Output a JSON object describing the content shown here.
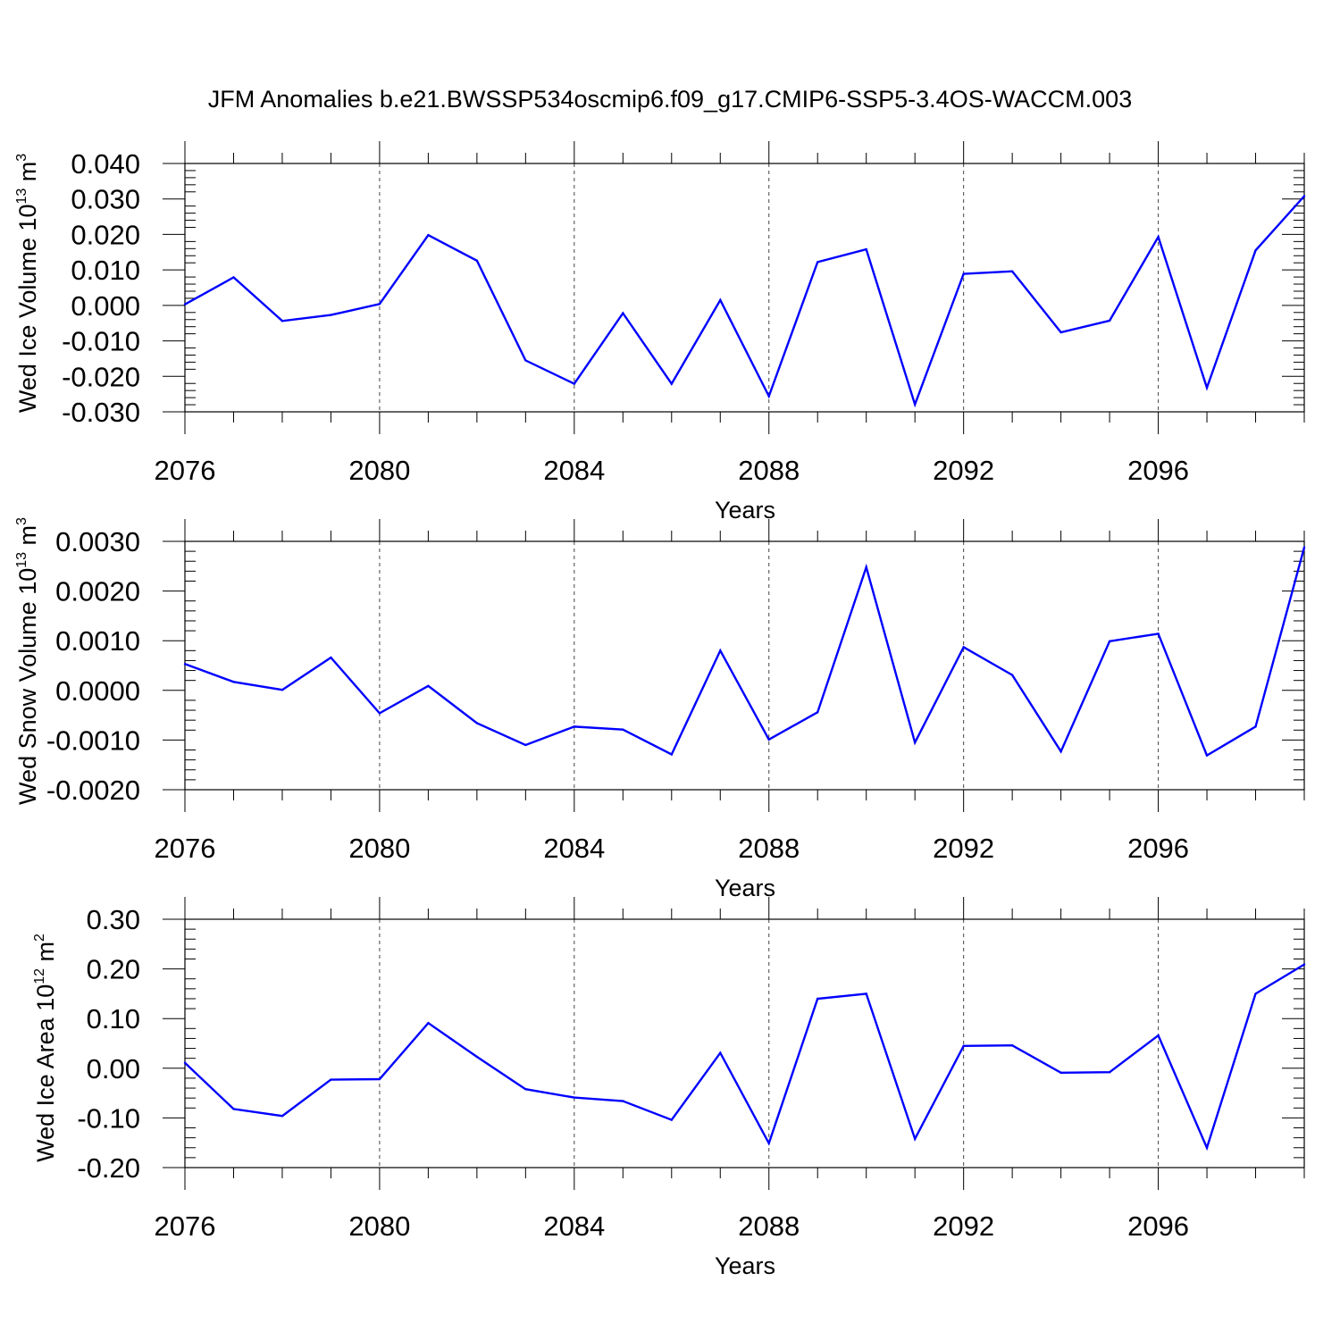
{
  "title": "JFM Anomalies b.e21.BWSSP534oscmip6.f09_g17.CMIP6-SSP5-3.4OS-WACCM.003",
  "line_color": "#0000ff",
  "chart_data": [
    {
      "type": "line",
      "name": "ice-volume",
      "ylabel": "Wed Ice Volume 10",
      "ylabel_exp": "13",
      "ylabel_unit": " m",
      "ylabel_unit_exp": "3",
      "xlabel": "Years",
      "xlim": [
        2076,
        2099
      ],
      "ylim": [
        -0.03,
        0.04
      ],
      "y_major_ticks": [
        0.04,
        0.03,
        0.02,
        0.01,
        0.0,
        -0.01,
        -0.02,
        -0.03
      ],
      "y_tick_labels": [
        "0.040",
        "0.030",
        "0.020",
        "0.010",
        "0.000",
        "-0.010",
        "-0.020",
        "-0.030"
      ],
      "x_major_ticks": [
        2076,
        2080,
        2084,
        2088,
        2092,
        2096
      ],
      "x_tick_labels": [
        "2076",
        "2080",
        "2084",
        "2088",
        "2092",
        "2096"
      ],
      "x": [
        2076,
        2077,
        2078,
        2079,
        2080,
        2081,
        2082,
        2083,
        2084,
        2085,
        2086,
        2087,
        2088,
        2089,
        2090,
        2091,
        2092,
        2093,
        2094,
        2095,
        2096,
        2097,
        2098,
        2099
      ],
      "values": [
        0.0003,
        0.0079,
        -0.0044,
        -0.0027,
        0.0004,
        0.0198,
        0.0126,
        -0.0155,
        -0.0221,
        -0.0022,
        -0.0221,
        0.0015,
        -0.0256,
        0.0122,
        0.0158,
        -0.0279,
        0.0089,
        0.0096,
        -0.0076,
        -0.0043,
        0.0193,
        -0.0232,
        0.0155,
        0.0308
      ]
    },
    {
      "type": "line",
      "name": "snow-volume",
      "ylabel": "Wed Snow Volume 10",
      "ylabel_exp": "13",
      "ylabel_unit": " m",
      "ylabel_unit_exp": "3",
      "xlabel": "Years",
      "xlim": [
        2076,
        2099
      ],
      "ylim": [
        -0.002,
        0.003
      ],
      "y_major_ticks": [
        0.003,
        0.002,
        0.001,
        0.0,
        -0.001,
        -0.002
      ],
      "y_tick_labels": [
        "0.0030",
        "0.0020",
        "0.0010",
        "0.0000",
        "-0.0010",
        "-0.0020"
      ],
      "x_major_ticks": [
        2076,
        2080,
        2084,
        2088,
        2092,
        2096
      ],
      "x_tick_labels": [
        "2076",
        "2080",
        "2084",
        "2088",
        "2092",
        "2096"
      ],
      "x": [
        2076,
        2077,
        2078,
        2079,
        2080,
        2081,
        2082,
        2083,
        2084,
        2085,
        2086,
        2087,
        2088,
        2089,
        2090,
        2091,
        2092,
        2093,
        2094,
        2095,
        2096,
        2097,
        2098,
        2099
      ],
      "values": [
        0.00053,
        0.00017,
        1e-05,
        0.00066,
        -0.00046,
        9e-05,
        -0.00066,
        -0.0011,
        -0.00073,
        -0.00079,
        -0.00129,
        0.0008,
        -0.00099,
        -0.00044,
        0.00248,
        -0.00105,
        0.00087,
        0.00031,
        -0.00123,
        0.00099,
        0.00114,
        -0.00131,
        -0.00073,
        0.00288
      ]
    },
    {
      "type": "line",
      "name": "ice-area",
      "ylabel": "Wed Ice Area 10",
      "ylabel_exp": "12",
      "ylabel_unit": " m",
      "ylabel_unit_exp": "2",
      "xlabel": "Years",
      "xlim": [
        2076,
        2099
      ],
      "ylim": [
        -0.2,
        0.3
      ],
      "y_major_ticks": [
        0.3,
        0.2,
        0.1,
        0.0,
        -0.1,
        -0.2
      ],
      "y_tick_labels": [
        "0.30",
        "0.20",
        "0.10",
        "0.00",
        "-0.10",
        "-0.20"
      ],
      "x_major_ticks": [
        2076,
        2080,
        2084,
        2088,
        2092,
        2096
      ],
      "x_tick_labels": [
        "2076",
        "2080",
        "2084",
        "2088",
        "2092",
        "2096"
      ],
      "x": [
        2076,
        2077,
        2078,
        2079,
        2080,
        2081,
        2082,
        2083,
        2084,
        2085,
        2086,
        2087,
        2088,
        2089,
        2090,
        2091,
        2092,
        2093,
        2094,
        2095,
        2096,
        2097,
        2098,
        2099
      ],
      "values": [
        0.011,
        -0.082,
        -0.096,
        -0.023,
        -0.022,
        0.091,
        0.023,
        -0.042,
        -0.059,
        -0.066,
        -0.104,
        0.031,
        -0.151,
        0.14,
        0.15,
        -0.142,
        0.045,
        0.046,
        -0.009,
        -0.008,
        0.066,
        -0.16,
        0.15,
        0.209
      ]
    }
  ]
}
